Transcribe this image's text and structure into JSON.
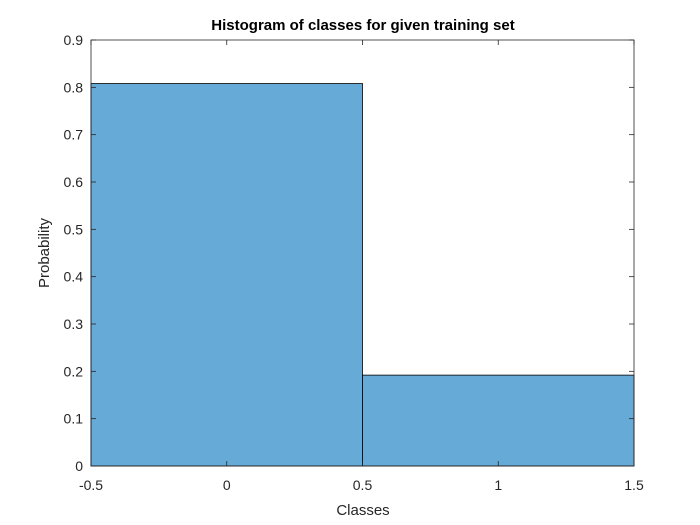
{
  "chart_data": {
    "type": "bar",
    "title": "Histogram of classes for given training set",
    "xlabel": "Classes",
    "ylabel": "Probability",
    "xlim": [
      -0.5,
      1.5
    ],
    "ylim": [
      0,
      0.9
    ],
    "xticks": [
      -0.5,
      0,
      0.5,
      1,
      1.5
    ],
    "xtick_labels": [
      "-0.5",
      "0",
      "0.5",
      "1",
      "1.5"
    ],
    "yticks": [
      0,
      0.1,
      0.2,
      0.3,
      0.4,
      0.5,
      0.6,
      0.7,
      0.8,
      0.9
    ],
    "ytick_labels": [
      "0",
      "0.1",
      "0.2",
      "0.3",
      "0.4",
      "0.5",
      "0.6",
      "0.7",
      "0.8",
      "0.9"
    ],
    "bins": [
      {
        "left": -0.5,
        "right": 0.5,
        "value": 0.808
      },
      {
        "left": 0.5,
        "right": 1.5,
        "value": 0.192
      }
    ],
    "bar_color": "#66aad7",
    "grid": false
  }
}
